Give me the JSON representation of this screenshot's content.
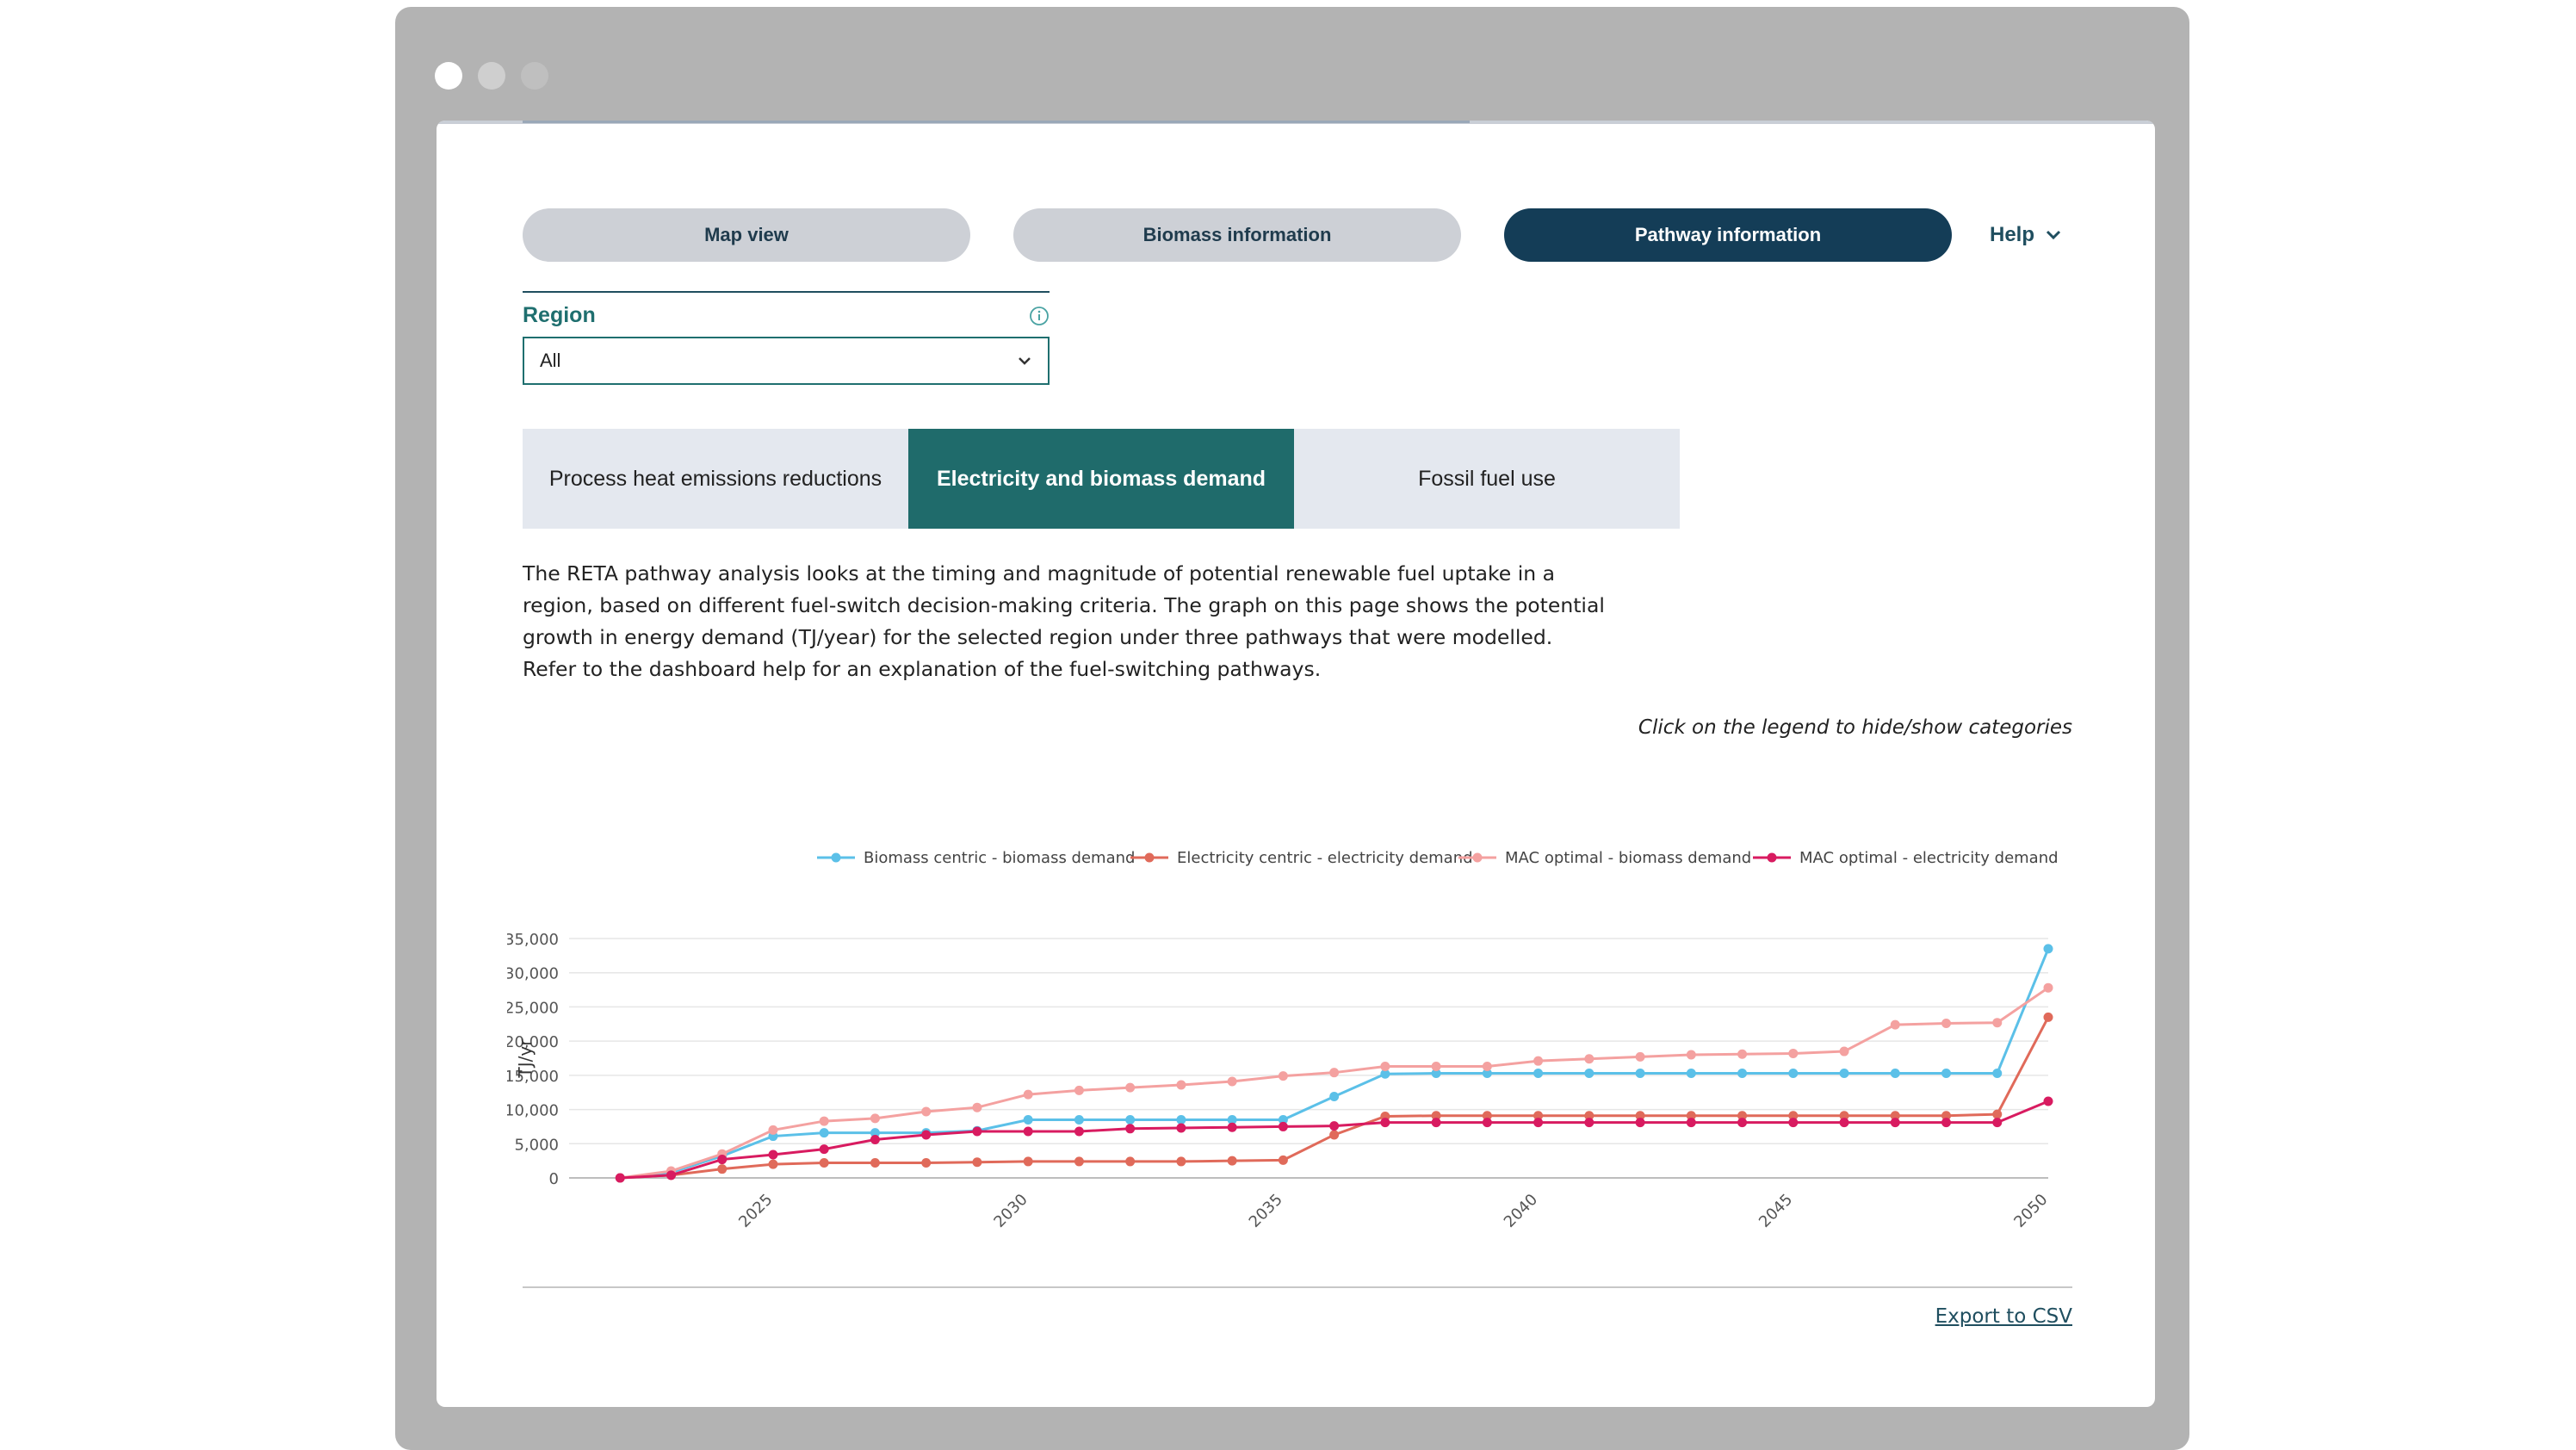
{
  "window": {
    "dots": [
      "#ffffff",
      "#cfcfcf",
      "#bfbfbf"
    ]
  },
  "nav": {
    "map_view": "Map view",
    "biomass_info": "Biomass information",
    "pathway_info": "Pathway information",
    "help": "Help"
  },
  "region": {
    "label": "Region",
    "selected": "All"
  },
  "tabs": [
    {
      "label": "Process heat emissions reductions",
      "active": false
    },
    {
      "label": "Electricity and biomass demand",
      "active": true
    },
    {
      "label": "Fossil fuel use",
      "active": false
    }
  ],
  "description": "The RETA pathway analysis looks at the timing and magnitude of potential renewable fuel uptake in a region, based on different fuel-switch decision-making criteria. The graph on this page shows the potential growth in energy demand (TJ/year) for the selected region under three pathways that were modelled. Refer to the dashboard help for an explanation of the fuel-switching pathways.",
  "legend_hint": "Click on the legend to hide/show categories",
  "export_label": "Export to CSV",
  "colors": {
    "nav_inactive": "#cdd0d6",
    "nav_active": "#143d57",
    "tab_inactive": "#e4e8ef",
    "tab_active": "#1f6b6b"
  },
  "chart_data": {
    "type": "line",
    "ylabel": "TJ/yr",
    "xlabel": "",
    "ylim": [
      0,
      35000
    ],
    "yticks": [
      0,
      5000,
      10000,
      15000,
      20000,
      25000,
      30000,
      35000
    ],
    "ytick_labels": [
      "0",
      "5,000",
      "10,000",
      "15,000",
      "20,000",
      "25,000",
      "30,000",
      "35,000"
    ],
    "xlim": [
      2021,
      2050
    ],
    "xticks": [
      2025,
      2030,
      2035,
      2040,
      2045,
      2050
    ],
    "x": [
      2022,
      2023,
      2024,
      2025,
      2026,
      2027,
      2028,
      2029,
      2030,
      2031,
      2032,
      2033,
      2034,
      2035,
      2036,
      2037,
      2038,
      2039,
      2040,
      2041,
      2042,
      2043,
      2044,
      2045,
      2046,
      2047,
      2048,
      2049,
      2050
    ],
    "legend_position": "top-right",
    "series": [
      {
        "name": "Biomass centric - biomass demand",
        "color": "#5bc0e8",
        "values": [
          0,
          800,
          3200,
          6100,
          6600,
          6600,
          6600,
          6900,
          8500,
          8500,
          8500,
          8500,
          8500,
          8500,
          11900,
          15200,
          15300,
          15300,
          15300,
          15300,
          15300,
          15300,
          15300,
          15300,
          15300,
          15300,
          15300,
          15300,
          33500
        ]
      },
      {
        "name": "Electricity centric - electricity demand",
        "color": "#e06a5a",
        "values": [
          0,
          400,
          1300,
          2000,
          2200,
          2200,
          2200,
          2300,
          2400,
          2400,
          2400,
          2400,
          2500,
          2600,
          6300,
          9000,
          9100,
          9100,
          9100,
          9100,
          9100,
          9100,
          9100,
          9100,
          9100,
          9100,
          9100,
          9300,
          23500
        ]
      },
      {
        "name": "MAC optimal - biomass demand",
        "color": "#f4a1a0",
        "values": [
          0,
          1000,
          3500,
          7000,
          8300,
          8700,
          9700,
          10300,
          12200,
          12800,
          13200,
          13600,
          14100,
          14900,
          15400,
          16300,
          16300,
          16300,
          17100,
          17400,
          17700,
          18000,
          18100,
          18200,
          18500,
          22400,
          22600,
          22700,
          27800
        ]
      },
      {
        "name": "MAC optimal - electricity demand",
        "color": "#d81b60",
        "values": [
          0,
          400,
          2700,
          3400,
          4200,
          5600,
          6300,
          6800,
          6800,
          6800,
          7200,
          7300,
          7400,
          7500,
          7600,
          8100,
          8100,
          8100,
          8100,
          8100,
          8100,
          8100,
          8100,
          8100,
          8100,
          8100,
          8100,
          8100,
          11200
        ]
      }
    ]
  }
}
